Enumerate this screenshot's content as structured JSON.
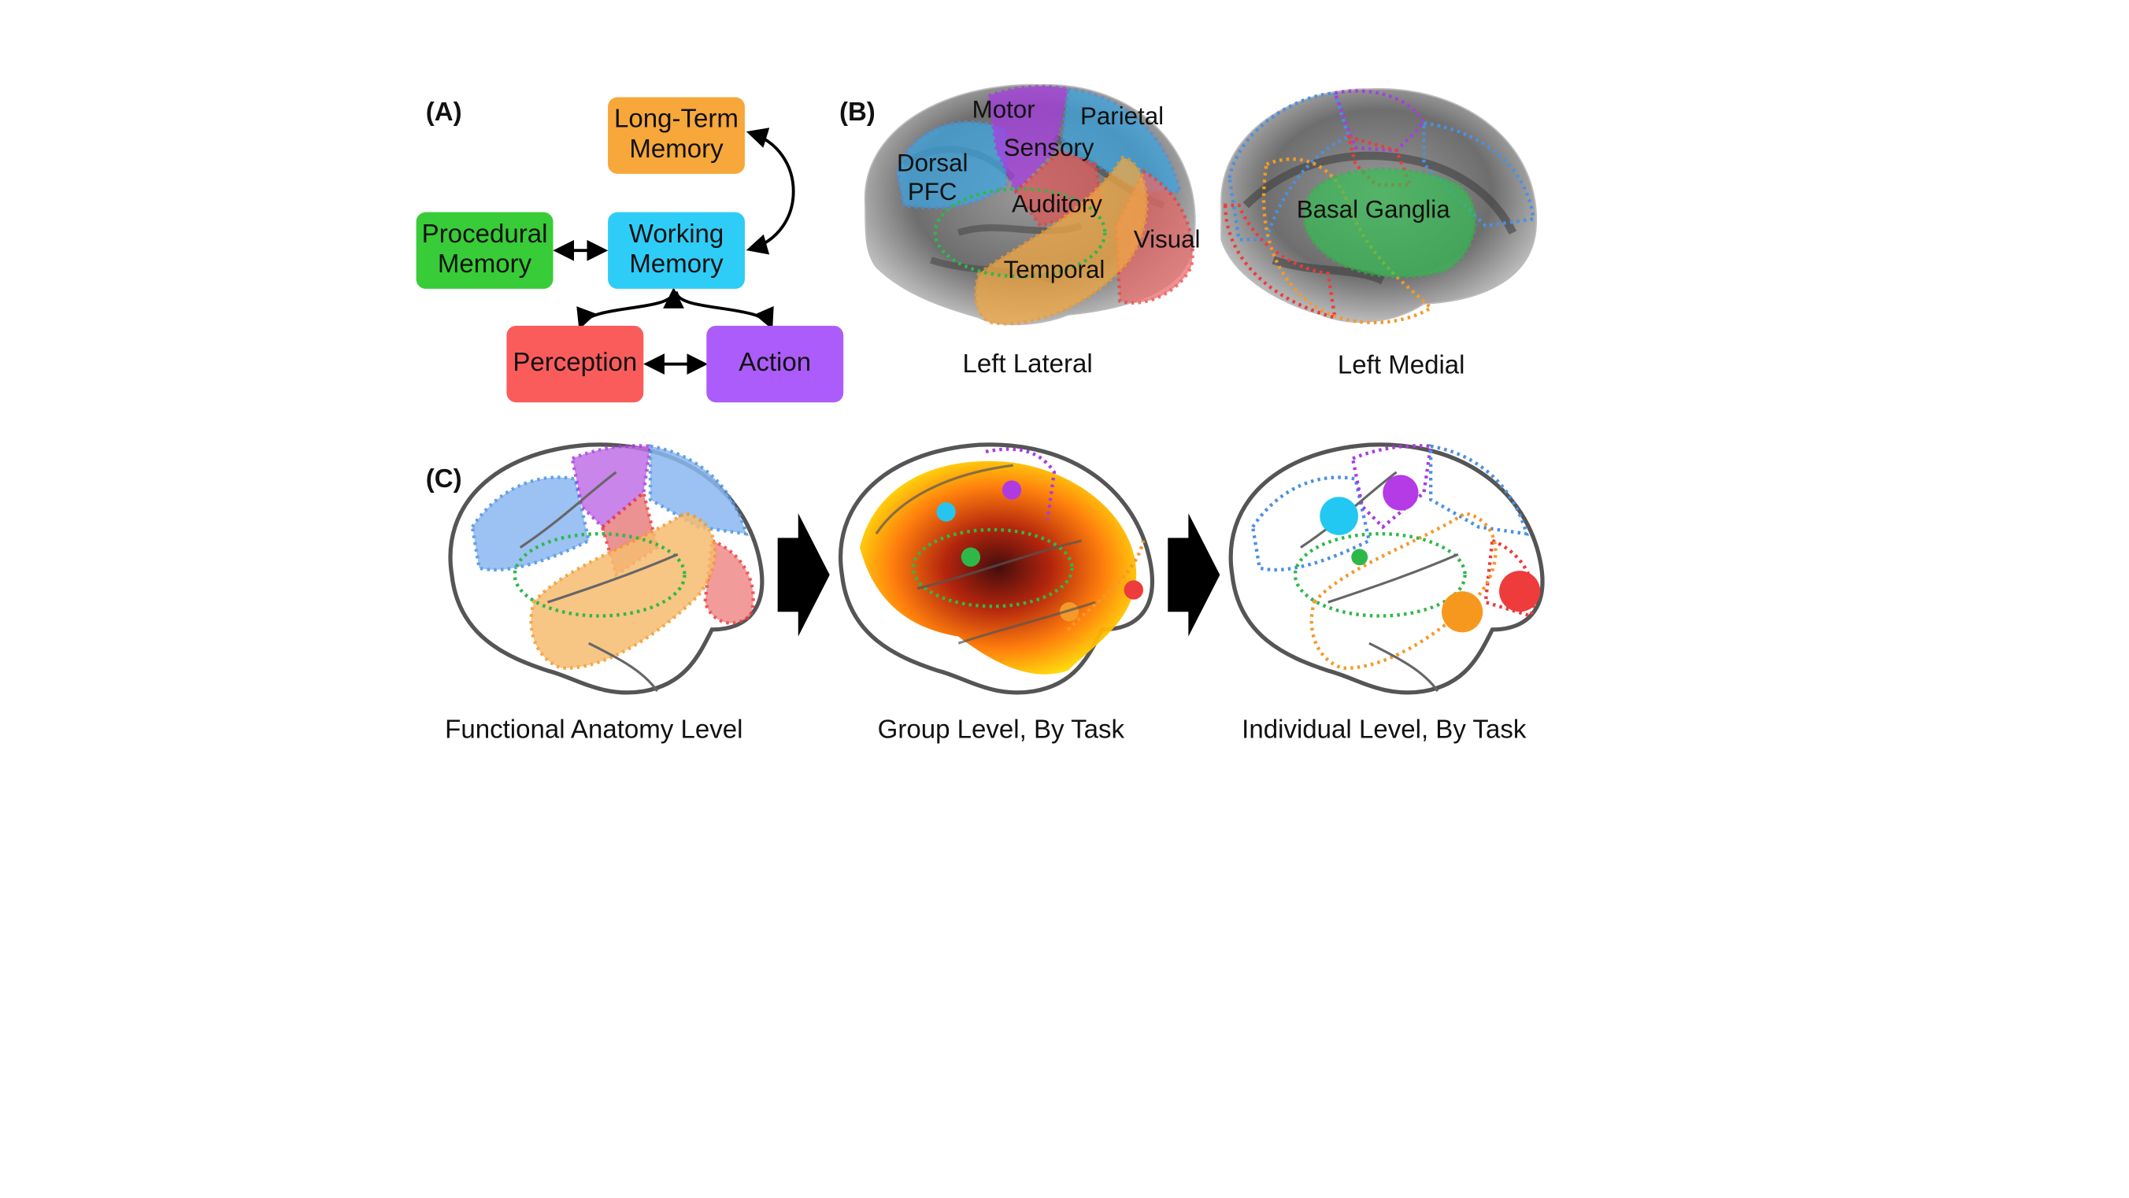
{
  "panels": {
    "a": "(A)",
    "b": "(B)",
    "c": "(C)"
  },
  "boxes": {
    "long_term": {
      "line1": "Long-Term",
      "line2": "Memory",
      "color": "#f8a73b"
    },
    "procedural": {
      "line1": "Procedural",
      "line2": "Memory",
      "color": "#38cc38"
    },
    "working": {
      "line1": "Working",
      "line2": "Memory",
      "color": "#2ecdf7"
    },
    "perception": {
      "label": "Perception",
      "color": "#fa5c5c"
    },
    "action": {
      "label": "Action",
      "color": "#ac5cfa"
    }
  },
  "regions": {
    "motor": "Motor",
    "parietal": "Parietal",
    "sensory": "Sensory",
    "dorsal_pfc_1": "Dorsal",
    "dorsal_pfc_2": "PFC",
    "auditory": "Auditory",
    "visual": "Visual",
    "temporal": "Temporal",
    "basal_ganglia": "Basal Ganglia"
  },
  "captions": {
    "left_lateral": "Left Lateral",
    "left_medial": "Left Medial",
    "functional": "Functional Anatomy Level",
    "group": "Group Level, By Task",
    "individual": "Individual Level, By Task"
  },
  "colors": {
    "blue": "#4a90e2",
    "purple": "#a63de0",
    "red": "#ee3b3b",
    "orange": "#f39a2b",
    "green": "#2fb84a"
  }
}
